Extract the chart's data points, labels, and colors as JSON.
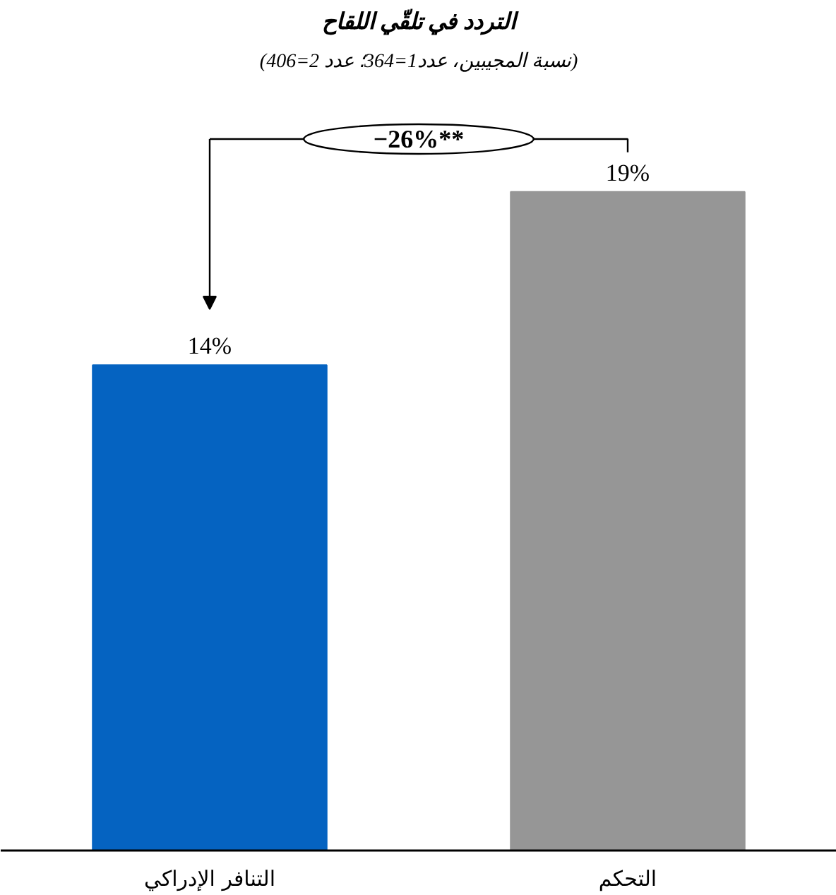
{
  "chart_data": {
    "type": "bar",
    "title": "التردد في تلقّي اللقاح",
    "subtitle": "(نسبة المجيبين، عدد1=364؛ عدد 2=406)",
    "categories": [
      "التنافر الإدراكي",
      "التحكم"
    ],
    "values": [
      14,
      19
    ],
    "colors": [
      "#0563c1",
      "#969696"
    ],
    "value_labels": [
      "14%",
      "19%"
    ],
    "annotations": [
      "−26%**"
    ],
    "grid": false
  }
}
